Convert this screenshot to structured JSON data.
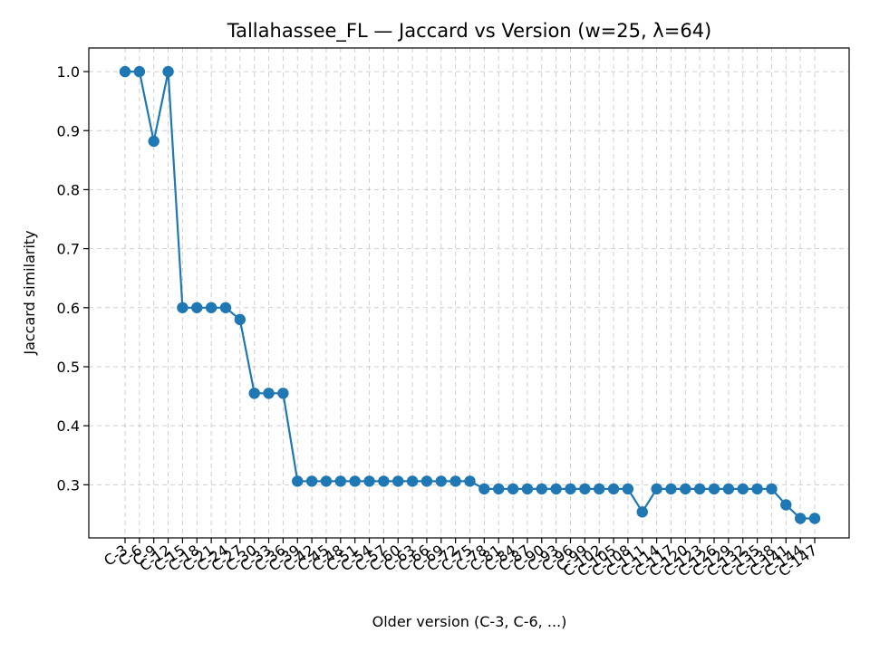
{
  "chart_data": {
    "type": "line",
    "title": "Tallahassee_FL — Jaccard vs Version (w=25, λ=64)",
    "xlabel": "Older version (C-3, C-6, ...)",
    "ylabel": "Jaccard similarity",
    "categories": [
      "C-3",
      "C-6",
      "C-9",
      "C-12",
      "C-15",
      "C-18",
      "C-21",
      "C-24",
      "C-27",
      "C-30",
      "C-33",
      "C-36",
      "C-39",
      "C-42",
      "C-45",
      "C-48",
      "C-51",
      "C-54",
      "C-57",
      "C-60",
      "C-63",
      "C-66",
      "C-69",
      "C-72",
      "C-75",
      "C-78",
      "C-81",
      "C-84",
      "C-87",
      "C-90",
      "C-93",
      "C-96",
      "C-99",
      "C-102",
      "C-105",
      "C-108",
      "C-111",
      "C-114",
      "C-117",
      "C-120",
      "C-123",
      "C-126",
      "C-129",
      "C-132",
      "C-135",
      "C-138",
      "C-141",
      "C-144",
      "C-147"
    ],
    "series": [
      {
        "color": "#1f77b4",
        "values": [
          1.0,
          1.0,
          0.882,
          1.0,
          0.6,
          0.6,
          0.6,
          0.6,
          0.58,
          0.455,
          0.455,
          0.455,
          0.306,
          0.306,
          0.306,
          0.306,
          0.306,
          0.306,
          0.306,
          0.306,
          0.306,
          0.306,
          0.306,
          0.306,
          0.306,
          0.293,
          0.293,
          0.293,
          0.293,
          0.293,
          0.293,
          0.293,
          0.293,
          0.293,
          0.293,
          0.293,
          0.254,
          0.293,
          0.293,
          0.293,
          0.293,
          0.293,
          0.293,
          0.293,
          0.293,
          0.293,
          0.266,
          0.243,
          0.243
        ]
      }
    ],
    "ylim": [
      0.21,
      1.04
    ],
    "yticks": [
      "0.3",
      "0.4",
      "0.5",
      "0.6",
      "0.7",
      "0.8",
      "0.9",
      "1.0"
    ],
    "grid": true
  }
}
